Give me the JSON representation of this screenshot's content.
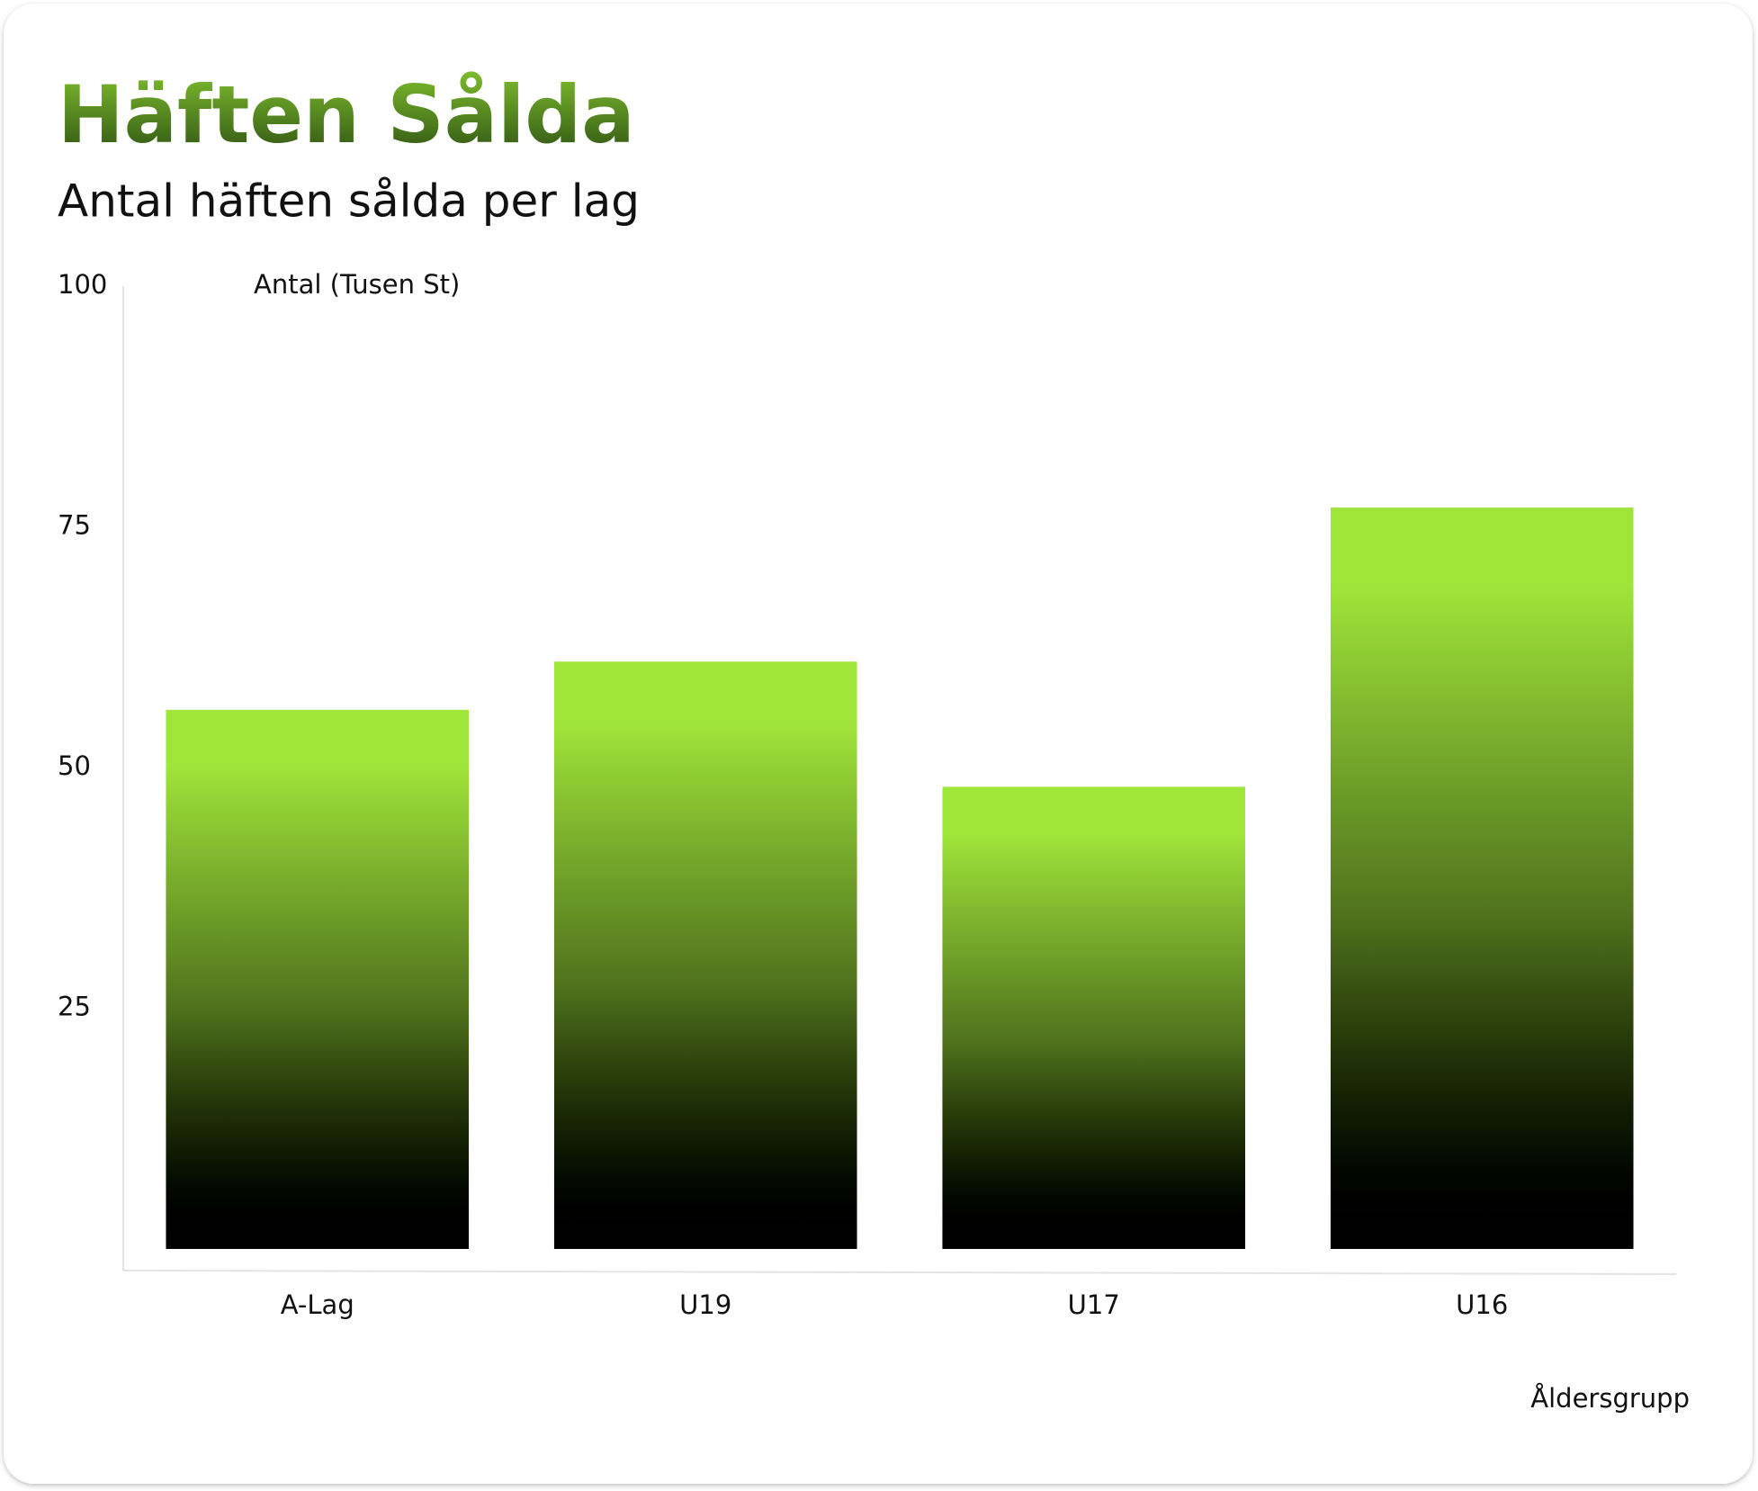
{
  "chart_data": {
    "type": "bar",
    "title": "Häften Sålda",
    "subtitle": "Antal häften sålda per lag",
    "y_label": "Antal (Tusen St)",
    "x_label": "Åldersgrupp",
    "categories": [
      "A-Lag",
      "U19",
      "U17",
      "U16"
    ],
    "values": [
      56,
      61,
      48,
      77
    ],
    "color": "#a0e63a",
    "ylim": [
      0,
      100
    ],
    "yticks": [
      25,
      50,
      75,
      100
    ],
    "grid": false
  }
}
